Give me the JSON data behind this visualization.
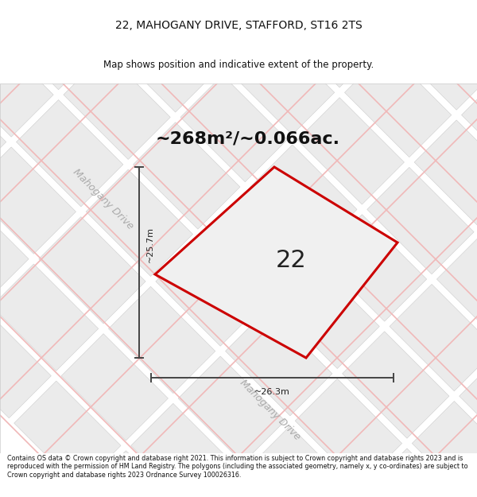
{
  "title_line1": "22, MAHOGANY DRIVE, STAFFORD, ST16 2TS",
  "title_line2": "Map shows position and indicative extent of the property.",
  "area_text": "~268m²/~0.066ac.",
  "property_number": "22",
  "width_label": "~26.3m",
  "height_label": "~25.7m",
  "footer_text": "Contains OS data © Crown copyright and database right 2021. This information is subject to Crown copyright and database rights 2023 and is reproduced with the permission of HM Land Registry. The polygons (including the associated geometry, namely x, y co-ordinates) are subject to Crown copyright and database rights 2023 Ordnance Survey 100026316.",
  "bg_color": "#ffffff",
  "map_bg": "#ffffff",
  "tile_fill": "#ebebeb",
  "tile_edge": "#cccccc",
  "road_line_color": "#f0b8b8",
  "plot_color": "#cc0000",
  "road_label_color": "#aaaaaa",
  "measure_color": "#444444",
  "title_color": "#111111",
  "footer_color": "#111111",
  "title_fontsize": 10,
  "subtitle_fontsize": 8.5,
  "area_fontsize": 16,
  "prop_num_fontsize": 22,
  "meas_fontsize": 8,
  "road_label_fontsize": 9,
  "footer_fontsize": 5.8
}
